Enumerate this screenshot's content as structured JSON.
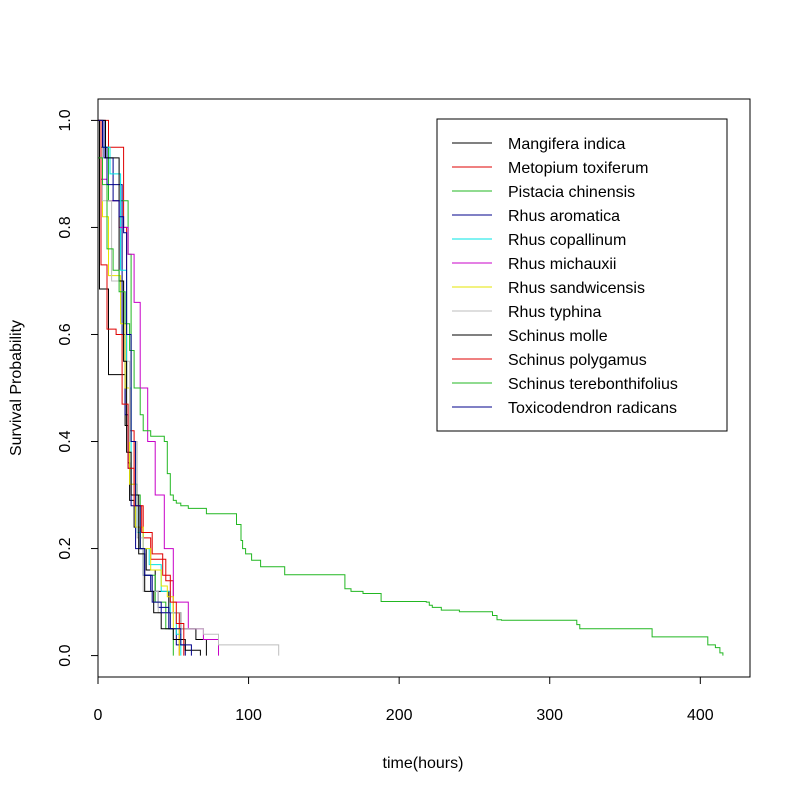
{
  "chart_data": {
    "type": "line",
    "step": true,
    "title": "",
    "xlabel": "time(hours)",
    "ylabel": "Survival Probability",
    "xlim": [
      0,
      433
    ],
    "ylim": [
      -0.04,
      1.04
    ],
    "x_ticks": [
      0,
      100,
      200,
      300,
      400
    ],
    "y_ticks": [
      0.0,
      0.2,
      0.4,
      0.6,
      0.8,
      1.0
    ],
    "x_tick_labels": [
      "0",
      "100",
      "200",
      "300",
      "400"
    ],
    "y_tick_labels": [
      "0.0",
      "0.2",
      "0.4",
      "0.6",
      "0.8",
      "1.0"
    ],
    "grid": false,
    "legend_position": "top-right",
    "series": [
      {
        "name": "Mangifera indica",
        "color": "#000000",
        "points": [
          [
            0,
            1.0
          ],
          [
            1,
            0.685
          ],
          [
            7,
            0.525
          ],
          [
            18,
            0.43
          ],
          [
            20,
            0.36
          ],
          [
            21,
            0.29
          ],
          [
            24,
            0.24
          ],
          [
            28,
            0.2
          ],
          [
            32,
            0.16
          ],
          [
            38,
            0.12
          ],
          [
            47,
            0.08
          ],
          [
            55,
            0.05
          ],
          [
            65,
            0.03
          ],
          [
            72,
            0.0
          ]
        ]
      },
      {
        "name": "Metopium toxiferum",
        "color": "#df0000",
        "points": [
          [
            0,
            1.0
          ],
          [
            7,
            0.95
          ],
          [
            17,
            0.8
          ],
          [
            19,
            0.5
          ],
          [
            21,
            0.42
          ],
          [
            24,
            0.32
          ],
          [
            26,
            0.28
          ],
          [
            30,
            0.22
          ],
          [
            35,
            0.18
          ],
          [
            45,
            0.14
          ],
          [
            50,
            0.08
          ],
          [
            54,
            0.0
          ]
        ]
      },
      {
        "name": "Pistacia chinensis",
        "color": "#22b722",
        "points": [
          [
            0,
            1.0
          ],
          [
            2,
            0.95
          ],
          [
            7,
            0.85
          ],
          [
            20,
            0.75
          ],
          [
            22,
            0.4
          ],
          [
            25,
            0.3
          ],
          [
            28,
            0.2
          ],
          [
            30,
            0.15
          ],
          [
            38,
            0.1
          ],
          [
            45,
            0.05
          ],
          [
            50,
            0.0
          ]
        ]
      },
      {
        "name": "Rhus aromatica",
        "color": "#00008b",
        "points": [
          [
            0,
            1.0
          ],
          [
            4,
            0.93
          ],
          [
            10,
            0.88
          ],
          [
            16,
            0.6
          ],
          [
            18,
            0.45
          ],
          [
            20,
            0.35
          ],
          [
            22,
            0.28
          ],
          [
            25,
            0.2
          ],
          [
            30,
            0.15
          ],
          [
            35,
            0.12
          ],
          [
            40,
            0.09
          ],
          [
            47,
            0.05
          ],
          [
            52,
            0.02
          ],
          [
            58,
            0.0
          ]
        ]
      },
      {
        "name": "Rhus copallinum",
        "color": "#00e5e5",
        "points": [
          [
            0,
            1.0
          ],
          [
            3,
            0.95
          ],
          [
            8,
            0.9
          ],
          [
            15,
            0.72
          ],
          [
            19,
            0.5
          ],
          [
            22,
            0.32
          ],
          [
            26,
            0.23
          ],
          [
            30,
            0.2
          ],
          [
            34,
            0.17
          ],
          [
            42,
            0.12
          ],
          [
            48,
            0.08
          ],
          [
            52,
            0.04
          ],
          [
            55,
            0.0
          ]
        ]
      },
      {
        "name": "Rhus michauxii",
        "color": "#c800c8",
        "points": [
          [
            0,
            1.0
          ],
          [
            2,
            0.89
          ],
          [
            6,
            0.85
          ],
          [
            14,
            0.8
          ],
          [
            20,
            0.75
          ],
          [
            24,
            0.66
          ],
          [
            28,
            0.5
          ],
          [
            33,
            0.4
          ],
          [
            38,
            0.3
          ],
          [
            44,
            0.2
          ],
          [
            50,
            0.1
          ],
          [
            60,
            0.05
          ],
          [
            70,
            0.03
          ],
          [
            80,
            0.0
          ]
        ]
      },
      {
        "name": "Rhus sandwicensis",
        "color": "#e5e500",
        "points": [
          [
            0,
            1.0
          ],
          [
            3,
            0.82
          ],
          [
            7,
            0.71
          ],
          [
            15,
            0.62
          ],
          [
            18,
            0.5
          ],
          [
            21,
            0.32
          ],
          [
            25,
            0.24
          ],
          [
            30,
            0.2
          ],
          [
            35,
            0.16
          ],
          [
            42,
            0.13
          ],
          [
            46,
            0.11
          ],
          [
            50,
            0.05
          ],
          [
            54,
            0.0
          ]
        ]
      },
      {
        "name": "Rhus typhina",
        "color": "#bebebe",
        "points": [
          [
            0,
            1.0
          ],
          [
            3,
            0.85
          ],
          [
            9,
            0.7
          ],
          [
            17,
            0.55
          ],
          [
            21,
            0.4
          ],
          [
            26,
            0.22
          ],
          [
            30,
            0.12
          ],
          [
            40,
            0.08
          ],
          [
            55,
            0.05
          ],
          [
            70,
            0.04
          ],
          [
            80,
            0.02
          ],
          [
            120,
            0.0
          ]
        ]
      },
      {
        "name": "Schinus molle",
        "color": "#000000",
        "points": [
          [
            0,
            1.0
          ],
          [
            5,
            0.93
          ],
          [
            14,
            0.7
          ],
          [
            17,
            0.55
          ],
          [
            19,
            0.38
          ],
          [
            22,
            0.3
          ],
          [
            27,
            0.19
          ],
          [
            31,
            0.12
          ],
          [
            37,
            0.08
          ],
          [
            42,
            0.05
          ],
          [
            50,
            0.03
          ],
          [
            58,
            0.01
          ],
          [
            68,
            0.0
          ]
        ]
      },
      {
        "name": "Schinus polygamus",
        "color": "#df0000",
        "points": [
          [
            0,
            1.0
          ],
          [
            2,
            0.73
          ],
          [
            6,
            0.61
          ],
          [
            12,
            0.6
          ],
          [
            16,
            0.47
          ],
          [
            20,
            0.35
          ],
          [
            24,
            0.28
          ],
          [
            29,
            0.23
          ],
          [
            36,
            0.19
          ],
          [
            43,
            0.15
          ],
          [
            48,
            0.1
          ],
          [
            52,
            0.06
          ],
          [
            57,
            0.0
          ]
        ]
      },
      {
        "name": "Schinus terebonthifolius",
        "color": "#22b722",
        "points": [
          [
            0,
            0.93
          ],
          [
            3,
            0.88
          ],
          [
            6,
            0.76
          ],
          [
            10,
            0.72
          ],
          [
            14,
            0.68
          ],
          [
            18,
            0.62
          ],
          [
            21,
            0.57
          ],
          [
            24,
            0.5
          ],
          [
            28,
            0.45
          ],
          [
            30,
            0.42
          ],
          [
            35,
            0.41
          ],
          [
            44,
            0.4
          ],
          [
            46,
            0.34
          ],
          [
            48,
            0.3
          ],
          [
            50,
            0.29
          ],
          [
            52,
            0.285
          ],
          [
            55,
            0.28
          ],
          [
            60,
            0.275
          ],
          [
            72,
            0.265
          ],
          [
            92,
            0.245
          ],
          [
            95,
            0.215
          ],
          [
            96,
            0.2
          ],
          [
            98,
            0.19
          ],
          [
            102,
            0.178
          ],
          [
            108,
            0.166
          ],
          [
            124,
            0.151
          ],
          [
            142,
            0.151
          ],
          [
            164,
            0.125
          ],
          [
            168,
            0.12
          ],
          [
            176,
            0.116
          ],
          [
            188,
            0.101
          ],
          [
            218,
            0.1
          ],
          [
            220,
            0.094
          ],
          [
            222,
            0.09
          ],
          [
            228,
            0.085
          ],
          [
            240,
            0.082
          ],
          [
            262,
            0.075
          ],
          [
            265,
            0.067
          ],
          [
            268,
            0.066
          ],
          [
            318,
            0.058
          ],
          [
            320,
            0.05
          ],
          [
            368,
            0.035
          ],
          [
            405,
            0.02
          ],
          [
            410,
            0.015
          ],
          [
            413,
            0.005
          ],
          [
            415,
            0.0
          ]
        ]
      },
      {
        "name": "Toxicodendron radicans",
        "color": "#00008b",
        "points": [
          [
            0,
            1.0
          ],
          [
            3,
            0.95
          ],
          [
            6,
            0.88
          ],
          [
            10,
            0.85
          ],
          [
            14,
            0.82
          ],
          [
            17,
            0.79
          ],
          [
            19,
            0.6
          ],
          [
            22,
            0.4
          ],
          [
            25,
            0.28
          ],
          [
            28,
            0.2
          ],
          [
            31,
            0.15
          ],
          [
            36,
            0.1
          ],
          [
            42,
            0.08
          ],
          [
            48,
            0.05
          ],
          [
            55,
            0.02
          ],
          [
            62,
            0.0
          ]
        ]
      }
    ]
  }
}
